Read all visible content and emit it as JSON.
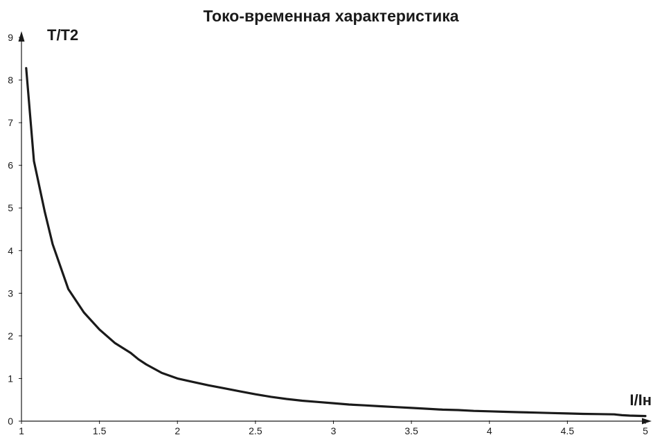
{
  "chart_data": {
    "type": "line",
    "title": "Токо-временная характеристика",
    "xlabel": "I/Iн",
    "ylabel": "T/T2",
    "xlim": [
      1,
      5
    ],
    "ylim": [
      0,
      9
    ],
    "xticks": [
      1,
      1.5,
      2,
      2.5,
      3,
      3.5,
      4,
      4.5,
      5
    ],
    "xtick_labels": [
      "1",
      "1.5",
      "2",
      "2.5",
      "3",
      "3.5",
      "4",
      "4.5",
      "5"
    ],
    "yticks": [
      0,
      1,
      2,
      3,
      4,
      5,
      6,
      7,
      8,
      9
    ],
    "ytick_labels": [
      "0",
      "1",
      "2",
      "3",
      "4",
      "5",
      "6",
      "7",
      "8",
      "9"
    ],
    "grid": false,
    "series": [
      {
        "color": "#1a1a1a",
        "x": [
          1.03,
          1.08,
          1.15,
          1.2,
          1.3,
          1.4,
          1.5,
          1.6,
          1.7,
          1.75,
          1.8,
          1.9,
          2.0,
          2.1,
          2.2,
          2.3,
          2.4,
          2.5,
          2.6,
          2.7,
          2.8,
          2.9,
          3.0,
          3.1,
          3.2,
          3.3,
          3.4,
          3.5,
          3.6,
          3.7,
          3.8,
          3.9,
          4.0,
          4.1,
          4.2,
          4.3,
          4.4,
          4.5,
          4.6,
          4.7,
          4.8,
          4.85,
          4.9,
          5.0
        ],
        "y": [
          8.28,
          6.1,
          4.9,
          4.15,
          3.1,
          2.55,
          2.15,
          1.83,
          1.6,
          1.45,
          1.33,
          1.13,
          1.0,
          0.92,
          0.84,
          0.77,
          0.7,
          0.63,
          0.57,
          0.52,
          0.48,
          0.45,
          0.42,
          0.39,
          0.37,
          0.35,
          0.33,
          0.31,
          0.29,
          0.27,
          0.26,
          0.24,
          0.23,
          0.22,
          0.21,
          0.2,
          0.19,
          0.18,
          0.17,
          0.165,
          0.16,
          0.14,
          0.13,
          0.12
        ]
      }
    ]
  }
}
